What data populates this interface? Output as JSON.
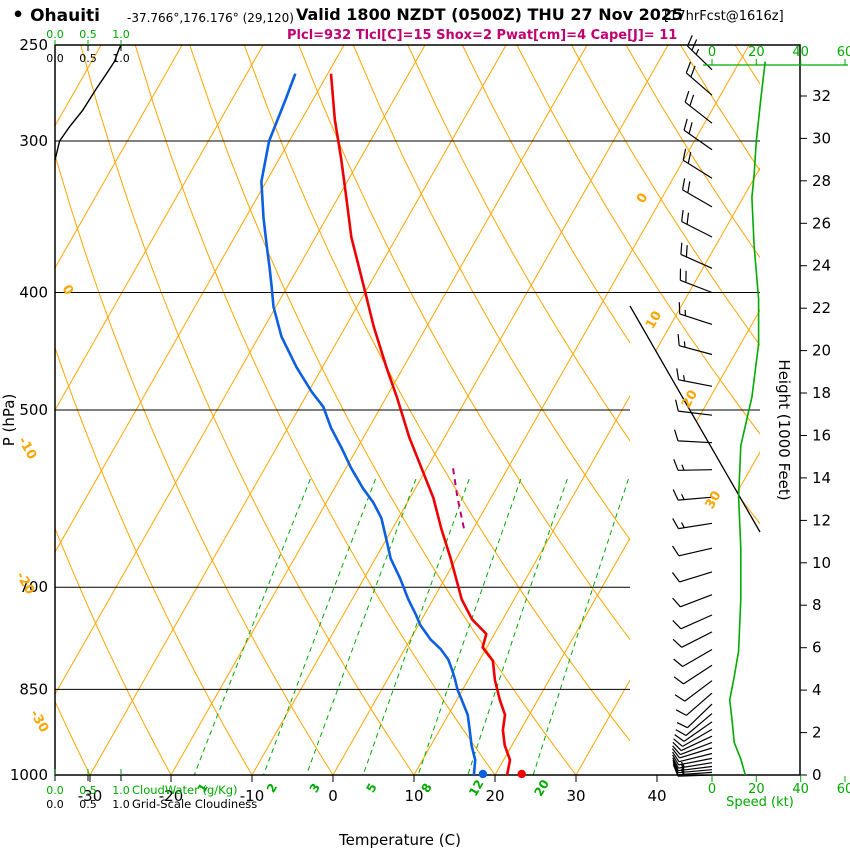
{
  "header": {
    "bullet": "•",
    "station": "Ohauiti",
    "coords": "-37.766°,176.176° (29,120)",
    "valid": "Valid 1800 NZDT (0500Z) THU 27 Nov 2025",
    "fcst_tag": "[17hrFcst@1616z]",
    "indices": "Plcl=932 Tlcl[C]=15 Shox=2 Pwat[cm]=4 Cape[J]= 11"
  },
  "axes": {
    "pressure_label": "P (hPa)",
    "pressure_ticks": [
      250,
      300,
      400,
      500,
      700,
      850,
      1000
    ],
    "temperature_label": "Temperature (C)",
    "temperature_ticks": [
      -30,
      -20,
      -10,
      0,
      10,
      20,
      30,
      40
    ],
    "height_label": "Height (1000 Feet)",
    "height_ticks": [
      0,
      2,
      4,
      6,
      8,
      10,
      12,
      14,
      16,
      18,
      20,
      22,
      24,
      26,
      28,
      30,
      32
    ],
    "speed_label": "Speed (kt)",
    "speed_ticks": [
      0,
      20,
      40,
      60
    ],
    "cloudwater_label": "CloudWater (g/Kg)",
    "cloudwater_scale": [
      "0.0",
      "0.5",
      "1.0"
    ],
    "cloudiness_label": "Grid-Scale Cloudiness",
    "cloudiness_scale": [
      "0.0",
      "0.5",
      "1.0"
    ]
  },
  "chart_data": {
    "type": "line",
    "variant": "skew-t-log-p-sounding",
    "pressure_range_hPa": [
      250,
      1000
    ],
    "temperature_axis_range_C": [
      -35,
      45
    ],
    "isotherm_labels_C": [
      0,
      10,
      20,
      30
    ],
    "dry_adiabat_labels_C": [
      0,
      -10,
      -20,
      -30
    ],
    "mixing_ratio_labels_g_kg": [
      1,
      2,
      3,
      5,
      8,
      12,
      20
    ],
    "surface_temperature_C": 23.3,
    "surface_dewpoint_C": 18.5,
    "temperature_profile_p_T": [
      [
        264,
        -49.6
      ],
      [
        288,
        -45.9
      ],
      [
        310,
        -42.4
      ],
      [
        334,
        -39.0
      ],
      [
        360,
        -35.6
      ],
      [
        396,
        -30.5
      ],
      [
        427,
        -26.5
      ],
      [
        461,
        -22.1
      ],
      [
        488,
        -18.7
      ],
      [
        527,
        -14.3
      ],
      [
        558,
        -10.7
      ],
      [
        591,
        -7.1
      ],
      [
        626,
        -4.0
      ],
      [
        663,
        -0.7
      ],
      [
        689,
        1.4
      ],
      [
        716,
        3.5
      ],
      [
        744,
        6.2
      ],
      [
        765,
        9.0
      ],
      [
        785,
        9.5
      ],
      [
        805,
        11.7
      ],
      [
        835,
        13.3
      ],
      [
        867,
        15.3
      ],
      [
        892,
        17.0
      ],
      [
        918,
        17.8
      ],
      [
        945,
        19.1
      ],
      [
        972,
        20.8
      ],
      [
        1000,
        21.5
      ]
    ],
    "dewpoint_profile_p_Td": [
      [
        264,
        -54.0
      ],
      [
        277,
        -53.4
      ],
      [
        300,
        -52.5
      ],
      [
        324,
        -50.6
      ],
      [
        347,
        -47.8
      ],
      [
        367,
        -45.3
      ],
      [
        381,
        -43.6
      ],
      [
        396,
        -41.9
      ],
      [
        411,
        -40.3
      ],
      [
        435,
        -37.2
      ],
      [
        461,
        -33.2
      ],
      [
        483,
        -29.6
      ],
      [
        497,
        -27.1
      ],
      [
        517,
        -24.7
      ],
      [
        537,
        -22.0
      ],
      [
        558,
        -19.4
      ],
      [
        580,
        -16.5
      ],
      [
        596,
        -14.2
      ],
      [
        614,
        -12.1
      ],
      [
        638,
        -10.1
      ],
      [
        663,
        -8.1
      ],
      [
        689,
        -5.5
      ],
      [
        716,
        -3.1
      ],
      [
        737,
        -1.1
      ],
      [
        752,
        0.2
      ],
      [
        773,
        2.5
      ],
      [
        787,
        4.4
      ],
      [
        803,
        6.1
      ],
      [
        819,
        7.3
      ],
      [
        835,
        8.4
      ],
      [
        851,
        9.4
      ],
      [
        867,
        10.6
      ],
      [
        892,
        12.4
      ],
      [
        918,
        13.7
      ],
      [
        945,
        15.0
      ],
      [
        972,
        16.5
      ],
      [
        1000,
        17.4
      ]
    ],
    "parcel_path_p_T": [
      [
        626,
        -1.2
      ],
      [
        590,
        -4.2
      ],
      [
        558,
        -6.8
      ]
    ],
    "wind_barbs_p_kt_dir": [
      [
        262,
        24,
        314
      ],
      [
        275,
        22,
        311
      ],
      [
        290,
        20,
        308
      ],
      [
        305,
        20,
        305
      ],
      [
        322,
        19,
        302
      ],
      [
        340,
        20,
        300
      ],
      [
        360,
        20,
        297
      ],
      [
        382,
        19,
        294
      ],
      [
        400,
        18,
        291
      ],
      [
        425,
        16,
        288
      ],
      [
        450,
        14,
        285
      ],
      [
        478,
        13,
        281
      ],
      [
        505,
        12,
        277
      ],
      [
        532,
        12,
        273
      ],
      [
        560,
        13,
        269
      ],
      [
        590,
        13,
        265
      ],
      [
        620,
        13,
        261
      ],
      [
        650,
        12,
        257
      ],
      [
        680,
        10,
        253
      ],
      [
        710,
        9,
        249
      ],
      [
        738,
        10,
        246
      ],
      [
        762,
        11,
        243
      ],
      [
        788,
        12,
        240
      ],
      [
        812,
        11,
        237
      ],
      [
        836,
        10,
        233
      ],
      [
        856,
        10,
        229
      ],
      [
        874,
        9,
        226
      ],
      [
        890,
        9,
        230
      ],
      [
        904,
        9,
        235
      ],
      [
        917,
        10,
        240
      ],
      [
        929,
        10,
        245
      ],
      [
        940,
        11,
        249
      ],
      [
        950,
        11,
        253
      ],
      [
        960,
        12,
        256
      ],
      [
        969,
        12,
        259
      ],
      [
        977,
        13,
        261
      ],
      [
        984,
        13,
        263
      ],
      [
        990,
        13,
        265
      ],
      [
        995,
        14,
        266
      ],
      [
        1000,
        14,
        268
      ]
    ],
    "wind_speed_profile_p_kt": [
      [
        258,
        24
      ],
      [
        277,
        22
      ],
      [
        300,
        20
      ],
      [
        320,
        19
      ],
      [
        334,
        18
      ],
      [
        366,
        19
      ],
      [
        405,
        21
      ],
      [
        441,
        21
      ],
      [
        488,
        18
      ],
      [
        535,
        13
      ],
      [
        590,
        12
      ],
      [
        650,
        13
      ],
      [
        716,
        13
      ],
      [
        790,
        12
      ],
      [
        830,
        10
      ],
      [
        867,
        8
      ],
      [
        900,
        9
      ],
      [
        940,
        10
      ],
      [
        970,
        13
      ],
      [
        1000,
        15
      ]
    ],
    "cloudiness_profile_p_frac": [
      [
        311,
        0
      ],
      [
        300,
        0.07
      ],
      [
        292,
        0.22
      ],
      [
        283,
        0.42
      ],
      [
        272,
        0.62
      ],
      [
        264,
        0.78
      ],
      [
        258,
        0.9
      ],
      [
        252,
        0.97
      ],
      [
        250,
        1.0
      ]
    ],
    "colors": {
      "grid_orange": "#FFA500",
      "green": "#00AA00",
      "temperature_red": "#EE0000",
      "dewpoint_blue": "#0C5FE0",
      "magenta": "#C00070",
      "black": "#000000"
    }
  }
}
